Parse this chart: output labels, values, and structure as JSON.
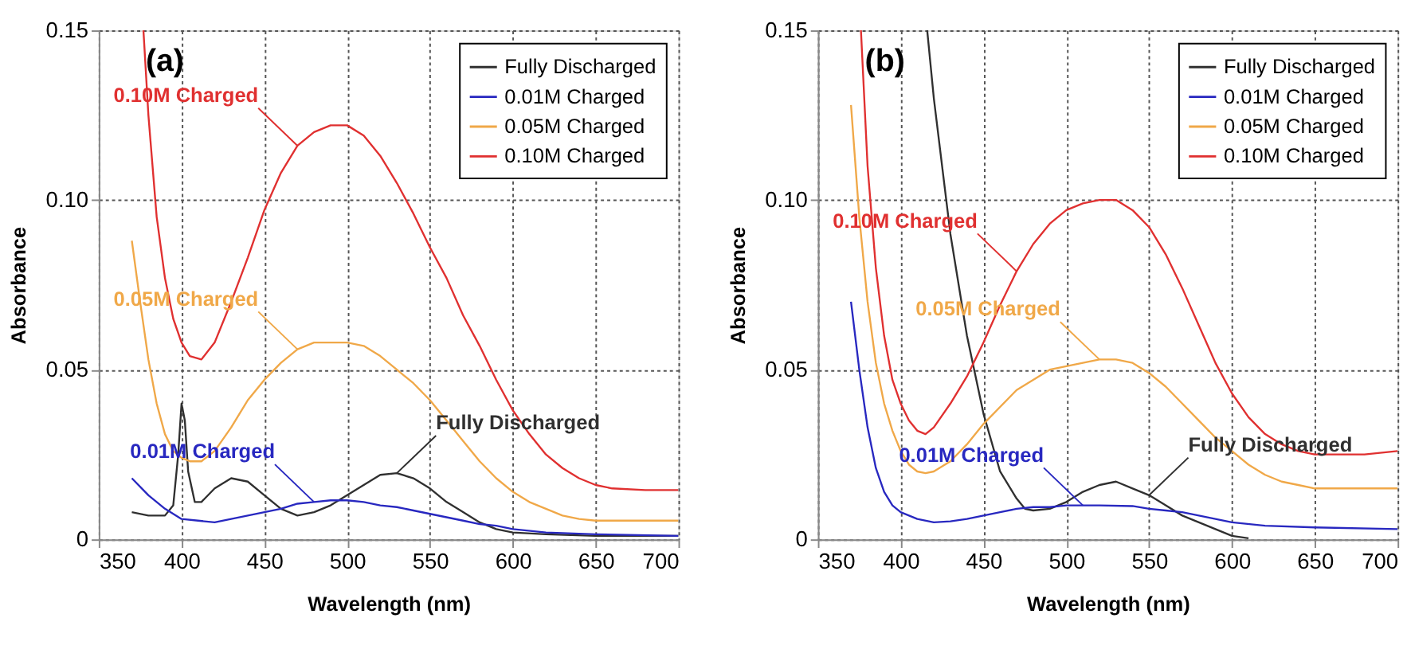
{
  "chart_data": [
    {
      "type": "line",
      "xlabel": "Wavelength (nm)",
      "ylabel": "Absorbance",
      "xlim": [
        350,
        700
      ],
      "xticks": [
        350,
        400,
        450,
        500,
        550,
        600,
        650,
        700
      ],
      "ylim": [
        0,
        0.15
      ],
      "yticks": [
        0,
        0.05,
        {
          "value": 0.1,
          "label": "0.10"
        },
        0.15
      ],
      "grid": true,
      "legend": "top right",
      "series": [
        {
          "name": "Fully Discharged",
          "color": "#303030",
          "x": [
            370,
            380,
            390,
            395,
            398,
            400,
            402,
            404,
            408,
            412,
            420,
            430,
            440,
            450,
            460,
            470,
            480,
            490,
            500,
            510,
            520,
            530,
            540,
            550,
            560,
            570,
            580,
            590,
            600,
            620,
            650,
            700
          ],
          "values": [
            0.008,
            0.007,
            0.007,
            0.01,
            0.025,
            0.04,
            0.035,
            0.02,
            0.011,
            0.011,
            0.015,
            0.018,
            0.017,
            0.013,
            0.009,
            0.007,
            0.008,
            0.01,
            0.013,
            0.016,
            0.019,
            0.0195,
            0.018,
            0.015,
            0.011,
            0.008,
            0.005,
            0.003,
            0.002,
            0.0015,
            0.001,
            0.001
          ]
        },
        {
          "name": "0.01M Charged",
          "color": "#2828c0",
          "x": [
            370,
            380,
            390,
            400,
            410,
            420,
            430,
            440,
            450,
            460,
            470,
            480,
            490,
            500,
            510,
            520,
            530,
            540,
            550,
            560,
            570,
            580,
            590,
            600,
            620,
            650,
            700
          ],
          "values": [
            0.018,
            0.013,
            0.009,
            0.006,
            0.0055,
            0.005,
            0.006,
            0.007,
            0.008,
            0.009,
            0.0105,
            0.011,
            0.0115,
            0.0115,
            0.011,
            0.01,
            0.0095,
            0.0085,
            0.0075,
            0.0065,
            0.0055,
            0.0045,
            0.004,
            0.003,
            0.002,
            0.0015,
            0.001
          ]
        },
        {
          "name": "0.05M Charged",
          "color": "#f0a848",
          "x": [
            370,
            375,
            380,
            385,
            390,
            395,
            400,
            405,
            412,
            420,
            430,
            440,
            450,
            460,
            470,
            480,
            490,
            500,
            510,
            520,
            530,
            540,
            550,
            560,
            570,
            580,
            590,
            600,
            610,
            620,
            630,
            640,
            650,
            700
          ],
          "values": [
            0.088,
            0.07,
            0.053,
            0.04,
            0.031,
            0.026,
            0.024,
            0.023,
            0.023,
            0.026,
            0.033,
            0.041,
            0.047,
            0.052,
            0.056,
            0.058,
            0.058,
            0.058,
            0.057,
            0.054,
            0.05,
            0.046,
            0.041,
            0.035,
            0.029,
            0.023,
            0.018,
            0.014,
            0.011,
            0.009,
            0.007,
            0.006,
            0.0055,
            0.0055
          ]
        },
        {
          "name": "0.10M Charged",
          "color": "#e03030",
          "x": [
            377,
            380,
            385,
            390,
            395,
            400,
            405,
            412,
            420,
            430,
            440,
            450,
            460,
            470,
            480,
            490,
            500,
            510,
            520,
            530,
            540,
            550,
            560,
            570,
            580,
            590,
            600,
            610,
            620,
            630,
            640,
            650,
            660,
            680,
            700
          ],
          "values": [
            0.15,
            0.125,
            0.095,
            0.077,
            0.065,
            0.058,
            0.054,
            0.053,
            0.058,
            0.07,
            0.083,
            0.097,
            0.108,
            0.116,
            0.12,
            0.122,
            0.122,
            0.119,
            0.113,
            0.105,
            0.096,
            0.086,
            0.077,
            0.066,
            0.057,
            0.047,
            0.038,
            0.031,
            0.025,
            0.021,
            0.018,
            0.016,
            0.015,
            0.0145,
            0.0145
          ]
        }
      ],
      "annotations": [
        "(a)",
        {
          "text": "Fully Discharged",
          "x": 530,
          "y": 0.0195
        },
        {
          "text": "0.01M Charged",
          "x": 480,
          "y": 0.011
        },
        {
          "text": "0.05M Charged",
          "x": 470,
          "y": 0.056
        },
        {
          "text": "0.10M Charged",
          "x": 470,
          "y": 0.116
        }
      ]
    },
    {
      "type": "line",
      "xlabel": "Wavelength (nm)",
      "ylabel": "Absorbance",
      "xlim": [
        350,
        700
      ],
      "xticks": [
        350,
        400,
        450,
        500,
        550,
        600,
        650,
        700
      ],
      "ylim": [
        0,
        0.15
      ],
      "yticks": [
        0,
        0.05,
        {
          "value": 0.1,
          "label": "0.10"
        },
        0.15
      ],
      "grid": true,
      "legend": "top right",
      "series": [
        {
          "name": "Fully Discharged",
          "color": "#303030",
          "x": [
            416,
            420,
            430,
            440,
            450,
            460,
            470,
            475,
            480,
            490,
            500,
            510,
            520,
            530,
            540,
            550,
            560,
            570,
            580,
            590,
            600,
            610
          ],
          "values": [
            0.15,
            0.13,
            0.09,
            0.06,
            0.037,
            0.02,
            0.012,
            0.009,
            0.0085,
            0.009,
            0.011,
            0.014,
            0.016,
            0.017,
            0.015,
            0.013,
            0.01,
            0.007,
            0.005,
            0.003,
            0.001,
            0.0003
          ]
        },
        {
          "name": "0.01M Charged",
          "color": "#2828c0",
          "x": [
            370,
            375,
            380,
            385,
            390,
            395,
            400,
            410,
            420,
            430,
            440,
            450,
            460,
            470,
            480,
            490,
            500,
            520,
            540,
            550,
            560,
            570,
            580,
            590,
            600,
            620,
            650,
            700
          ],
          "values": [
            0.07,
            0.05,
            0.033,
            0.021,
            0.014,
            0.01,
            0.008,
            0.006,
            0.005,
            0.0053,
            0.006,
            0.007,
            0.008,
            0.009,
            0.0095,
            0.0095,
            0.01,
            0.01,
            0.0098,
            0.009,
            0.0085,
            0.008,
            0.007,
            0.006,
            0.005,
            0.004,
            0.0035,
            0.003
          ]
        },
        {
          "name": "0.05M Charged",
          "color": "#f0a848",
          "x": [
            370,
            375,
            380,
            385,
            390,
            395,
            400,
            405,
            410,
            415,
            420,
            430,
            440,
            450,
            460,
            470,
            480,
            490,
            500,
            510,
            520,
            530,
            540,
            550,
            560,
            570,
            580,
            590,
            600,
            610,
            620,
            630,
            640,
            650,
            700
          ],
          "values": [
            0.128,
            0.095,
            0.07,
            0.052,
            0.04,
            0.032,
            0.026,
            0.022,
            0.02,
            0.0195,
            0.02,
            0.023,
            0.028,
            0.034,
            0.039,
            0.044,
            0.047,
            0.05,
            0.051,
            0.052,
            0.053,
            0.053,
            0.052,
            0.049,
            0.045,
            0.04,
            0.035,
            0.03,
            0.026,
            0.022,
            0.019,
            0.017,
            0.016,
            0.015,
            0.015
          ]
        },
        {
          "name": "0.10M Charged",
          "color": "#e03030",
          "x": [
            376,
            380,
            385,
            390,
            395,
            400,
            405,
            410,
            415,
            420,
            430,
            440,
            450,
            460,
            470,
            480,
            490,
            500,
            510,
            520,
            530,
            540,
            550,
            560,
            570,
            580,
            590,
            600,
            610,
            620,
            630,
            640,
            650,
            660,
            680,
            700
          ],
          "values": [
            0.15,
            0.11,
            0.08,
            0.06,
            0.047,
            0.04,
            0.035,
            0.032,
            0.031,
            0.033,
            0.04,
            0.048,
            0.058,
            0.069,
            0.079,
            0.087,
            0.093,
            0.097,
            0.099,
            0.1,
            0.1,
            0.097,
            0.092,
            0.084,
            0.074,
            0.063,
            0.052,
            0.043,
            0.036,
            0.031,
            0.028,
            0.026,
            0.025,
            0.025,
            0.025,
            0.026
          ]
        }
      ],
      "annotations": [
        "(b)",
        {
          "text": "Fully Discharged",
          "x": 550,
          "y": 0.013
        },
        {
          "text": "0.01M Charged",
          "x": 510,
          "y": 0.01
        },
        {
          "text": "0.05M Charged",
          "x": 520,
          "y": 0.053
        },
        {
          "text": "0.10M Charged",
          "x": 470,
          "y": 0.079
        }
      ]
    }
  ]
}
